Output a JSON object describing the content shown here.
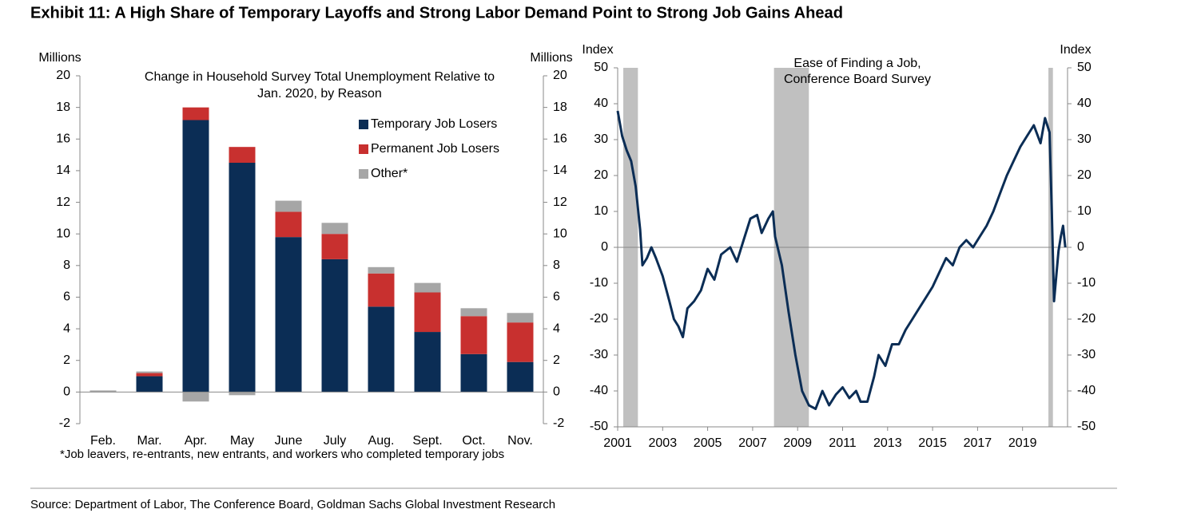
{
  "title": "Exhibit 11: A High Share of Temporary Layoffs and Strong Labor Demand Point to Strong Job Gains Ahead",
  "source": "Source: Department of Labor, The Conference Board, Goldman Sachs Global Investment Research",
  "chart_data": [
    {
      "type": "bar",
      "stacked": true,
      "title": [
        "Change in Household Survey Total Unemployment Relative to",
        "Jan. 2020, by Reason"
      ],
      "ylabel": "Millions",
      "y2label": "Millions",
      "categories": [
        "Feb.",
        "Mar.",
        "Apr.",
        "May",
        "June",
        "July",
        "Aug.",
        "Sept.",
        "Oct.",
        "Nov."
      ],
      "series": [
        {
          "name": "Temporary Job Losers",
          "color": "#0b2d55",
          "values": [
            0,
            1.0,
            17.2,
            14.5,
            9.8,
            8.4,
            5.4,
            3.8,
            2.4,
            1.9
          ]
        },
        {
          "name": "Permanent Job Losers",
          "color": "#c8302f",
          "values": [
            0,
            0.2,
            0.8,
            1.0,
            1.6,
            1.6,
            2.1,
            2.5,
            2.4,
            2.5
          ]
        },
        {
          "name": "Other*",
          "color": "#a6a6a6",
          "values": [
            0.1,
            0.1,
            -0.6,
            -0.2,
            0.7,
            0.7,
            0.4,
            0.6,
            0.5,
            0.6
          ]
        }
      ],
      "ylim": [
        -2,
        20
      ],
      "yticks": [
        -2,
        0,
        2,
        4,
        6,
        8,
        10,
        12,
        14,
        16,
        18,
        20
      ],
      "y2lim": [
        -2,
        20
      ],
      "y2ticks": [
        -2,
        0,
        2,
        4,
        6,
        8,
        10,
        12,
        14,
        16,
        18,
        20
      ],
      "legend": "upper right",
      "footnote": "*Job leavers, re-entrants, new entrants, and workers who completed temporary jobs"
    },
    {
      "type": "line",
      "title": [
        "Ease of Finding a Job,",
        "Conference Board Survey"
      ],
      "ylabel": "Index",
      "y2label": "Index",
      "color": "#0b2d55",
      "x": [
        2001.0,
        2001.2,
        2001.4,
        2001.6,
        2001.8,
        2002.0,
        2002.1,
        2002.3,
        2002.5,
        2002.7,
        2003.0,
        2003.3,
        2003.5,
        2003.7,
        2003.9,
        2004.1,
        2004.4,
        2004.7,
        2005.0,
        2005.3,
        2005.6,
        2006.0,
        2006.3,
        2006.6,
        2006.9,
        2007.2,
        2007.4,
        2007.7,
        2007.9,
        2008.0,
        2008.3,
        2008.6,
        2008.9,
        2009.2,
        2009.5,
        2009.8,
        2010.1,
        2010.4,
        2010.7,
        2011.0,
        2011.3,
        2011.6,
        2011.8,
        2012.1,
        2012.4,
        2012.6,
        2012.9,
        2013.2,
        2013.5,
        2013.8,
        2014.1,
        2014.4,
        2014.7,
        2015.0,
        2015.3,
        2015.6,
        2015.9,
        2016.2,
        2016.5,
        2016.8,
        2017.1,
        2017.4,
        2017.7,
        2018.0,
        2018.3,
        2018.6,
        2018.9,
        2019.2,
        2019.5,
        2019.8,
        2020.0,
        2020.2,
        2020.3,
        2020.4,
        2020.5,
        2020.6,
        2020.7,
        2020.8,
        2020.9
      ],
      "values": [
        38,
        31,
        27,
        24,
        17,
        5,
        -5,
        -3,
        0,
        -3,
        -8,
        -15,
        -20,
        -22,
        -25,
        -17,
        -15,
        -12,
        -6,
        -9,
        -2,
        0,
        -4,
        2,
        8,
        9,
        4,
        8,
        10,
        3,
        -5,
        -18,
        -30,
        -40,
        -44,
        -45,
        -40,
        -44,
        -41,
        -39,
        -42,
        -40,
        -43,
        -43,
        -36,
        -30,
        -33,
        -27,
        -27,
        -23,
        -20,
        -17,
        -14,
        -11,
        -7,
        -3,
        -5,
        0,
        2,
        0,
        3,
        6,
        10,
        15,
        20,
        24,
        28,
        31,
        34,
        29,
        36,
        32,
        10,
        -15,
        -8,
        -1,
        3,
        6,
        0
      ],
      "shaded": [
        [
          2001.25,
          2001.9
        ],
        [
          2007.95,
          2009.5
        ],
        [
          2020.15,
          2020.35
        ]
      ],
      "shade_color": "#c0c0c0",
      "xlim": [
        2001,
        2021
      ],
      "xticks": [
        2001,
        2003,
        2005,
        2007,
        2009,
        2011,
        2013,
        2015,
        2017,
        2019
      ],
      "ylim": [
        -50,
        50
      ],
      "yticks": [
        -50,
        -40,
        -30,
        -20,
        -10,
        0,
        10,
        20,
        30,
        40,
        50
      ],
      "y2lim": [
        -50,
        50
      ],
      "y2ticks": [
        -50,
        -40,
        -30,
        -20,
        -10,
        0,
        10,
        20,
        30,
        40,
        50
      ]
    }
  ]
}
